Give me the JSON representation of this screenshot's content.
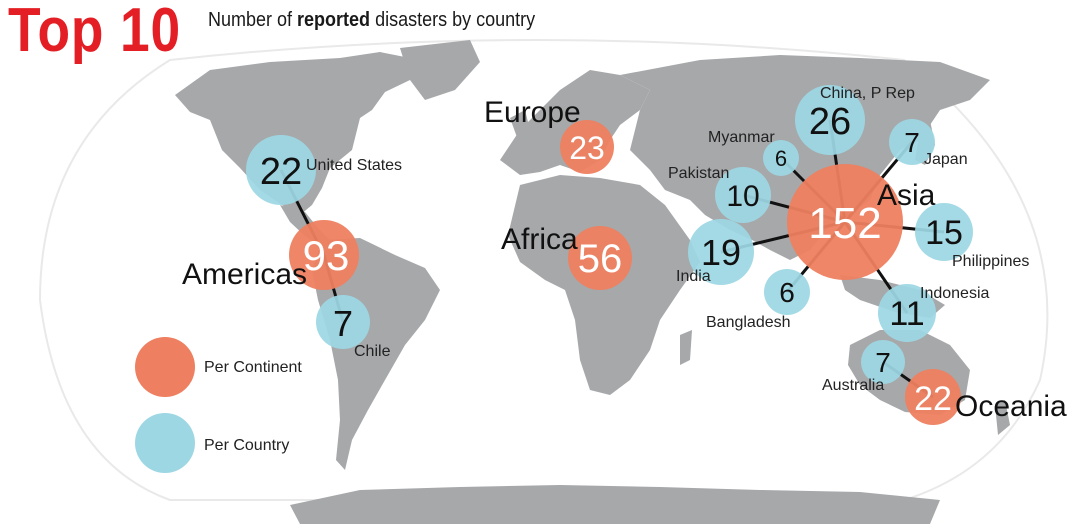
{
  "header": {
    "title": "Top 10",
    "subtitle_prefix": "Number of",
    "subtitle_bold": "reported",
    "subtitle_suffix": "disasters by country"
  },
  "legend": {
    "continent_label": "Per Continent",
    "country_label": "Per Country"
  },
  "colors": {
    "continent": "#ee7f60",
    "country": "#9dd7e4",
    "land": "#a6a8aa",
    "ocean": "#ffffff",
    "title": "#e31e24"
  },
  "continents": [
    {
      "name": "Americas",
      "value": "93"
    },
    {
      "name": "Europe",
      "value": "23"
    },
    {
      "name": "Africa",
      "value": "56"
    },
    {
      "name": "Asia",
      "value": "152"
    },
    {
      "name": "Oceania",
      "value": "22"
    }
  ],
  "countries": [
    {
      "name": "United States",
      "value": "22"
    },
    {
      "name": "Chile",
      "value": "7"
    },
    {
      "name": "China, P Rep",
      "value": "26"
    },
    {
      "name": "Myanmar",
      "value": "6"
    },
    {
      "name": "Japan",
      "value": "7"
    },
    {
      "name": "Pakistan",
      "value": "10"
    },
    {
      "name": "India",
      "value": "19"
    },
    {
      "name": "Philippines",
      "value": "15"
    },
    {
      "name": "Bangladesh",
      "value": "6"
    },
    {
      "name": "Indonesia",
      "value": "11"
    },
    {
      "name": "Australia",
      "value": "7"
    }
  ]
}
